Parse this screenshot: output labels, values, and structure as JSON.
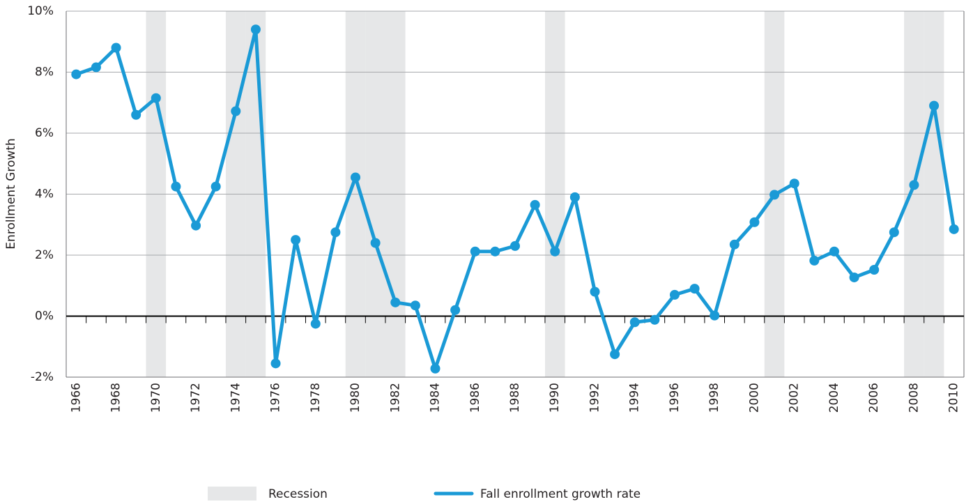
{
  "chart_data": {
    "type": "line",
    "y_label": "Enrollment Growth",
    "categories": [
      "1966",
      null,
      "1968",
      null,
      "1970",
      null,
      "1972",
      null,
      "1974",
      null,
      "1976",
      null,
      "1978",
      null,
      "1980",
      null,
      "1982",
      null,
      "1984",
      null,
      "1986",
      null,
      "1988",
      null,
      "1990",
      null,
      "1992",
      null,
      "1994",
      null,
      "1996",
      null,
      "1998",
      null,
      "2000",
      null,
      "2002",
      null,
      "2004",
      null,
      "2006",
      null,
      "2008",
      null,
      "2010"
    ],
    "series": [
      {
        "name": "Fall enrollment growth rate",
        "color": "#1a9ad6",
        "values": [
          7.93,
          8.16,
          8.8,
          6.6,
          7.15,
          4.25,
          2.97,
          4.25,
          6.72,
          9.4,
          -1.55,
          2.5,
          -0.25,
          2.75,
          4.55,
          2.4,
          0.45,
          0.35,
          -1.72,
          0.2,
          2.12,
          2.12,
          2.3,
          3.65,
          2.12,
          3.9,
          0.8,
          -1.25,
          -0.2,
          -0.12,
          0.7,
          0.9,
          0.02,
          2.35,
          3.08,
          3.98,
          4.35,
          1.82,
          2.12,
          1.27,
          1.52,
          2.75,
          4.3,
          6.9,
          2.85
        ]
      }
    ],
    "recession": {
      "name": "Recession",
      "color": "#e6e7e8",
      "category_indices": [
        4,
        8,
        9,
        14,
        15,
        16,
        24,
        35,
        42,
        43
      ]
    },
    "ylim": [
      -2,
      10
    ],
    "yticks": [
      {
        "value": -2,
        "label": "-2%"
      },
      {
        "value": 0,
        "label": "0%"
      },
      {
        "value": 2,
        "label": "2%"
      },
      {
        "value": 4,
        "label": "4%"
      },
      {
        "value": 6,
        "label": "6%"
      },
      {
        "value": 8,
        "label": "8%"
      },
      {
        "value": 10,
        "label": "10%"
      }
    ],
    "grid": true
  }
}
